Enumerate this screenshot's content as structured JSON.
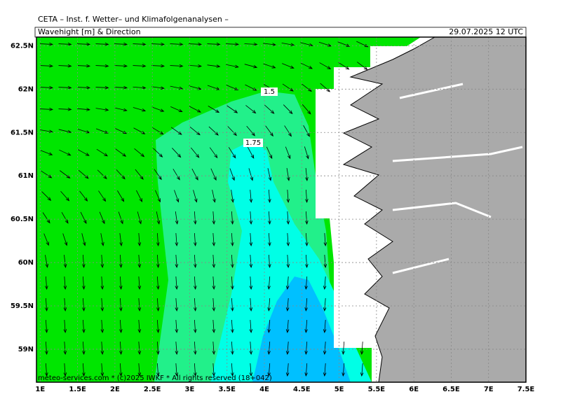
{
  "header": {
    "title": "CETA – Inst. f. Wetter– und Klimafolgenanalysen –",
    "subtitle": "Wavehight [m] & Direction",
    "date": "29.07.2025 12 UTC"
  },
  "map": {
    "xlim": [
      0.95,
      7.5
    ],
    "ylim": [
      58.62,
      62.6
    ],
    "xticks": [
      {
        "value": 1,
        "label": "1E"
      },
      {
        "value": 1.5,
        "label": "1.5E"
      },
      {
        "value": 2,
        "label": "2E"
      },
      {
        "value": 2.5,
        "label": "2.5E"
      },
      {
        "value": 3,
        "label": "3E"
      },
      {
        "value": 3.5,
        "label": "3.5E"
      },
      {
        "value": 4,
        "label": "4E"
      },
      {
        "value": 4.5,
        "label": "4.5E"
      },
      {
        "value": 5,
        "label": "5E"
      },
      {
        "value": 5.5,
        "label": "5.5E"
      },
      {
        "value": 6,
        "label": "6E"
      },
      {
        "value": 6.5,
        "label": "6.5E"
      },
      {
        "value": 7,
        "label": "7E"
      },
      {
        "value": 7.5,
        "label": "7.5E"
      }
    ],
    "yticks": [
      {
        "value": 59,
        "label": "59N"
      },
      {
        "value": 59.5,
        "label": "59.5N"
      },
      {
        "value": 60,
        "label": "60N"
      },
      {
        "value": 60.5,
        "label": "60.5N"
      },
      {
        "value": 61,
        "label": "61N"
      },
      {
        "value": 61.5,
        "label": "61.5N"
      },
      {
        "value": 62,
        "label": "62N"
      },
      {
        "value": 62.5,
        "label": "62.5N"
      }
    ],
    "contour_labels": [
      "1.5",
      "1.75"
    ],
    "credit": "meteo-services.com * (c)2025 IWKF * All rights reserved (18+042)"
  }
}
